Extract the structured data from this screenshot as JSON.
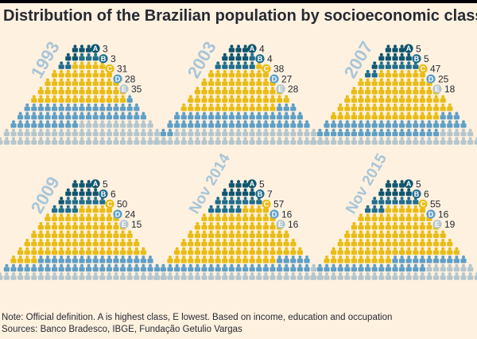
{
  "title": "Distribution of the Brazilian population by socioeconomic class",
  "note": "Note: Official definition. A is highest class, E lowest. Based on income, education and occupation",
  "sources": "Sources: Banco Bradesco, IBGE, Fundação Getulio Vargas",
  "colors": {
    "background": "#fff1e0",
    "A": "#0f5670",
    "B": "#1f6e8c",
    "C": "#e9bc14",
    "D": "#5d9fc7",
    "E": "#b4c6cc",
    "year_label": "#a8c6d8"
  },
  "chart_data": [
    {
      "type": "pictogram",
      "period": "1993",
      "classes": [
        "A",
        "B",
        "C",
        "D",
        "E"
      ],
      "values": [
        3,
        3,
        31,
        28,
        35
      ]
    },
    {
      "type": "pictogram",
      "period": "2003",
      "classes": [
        "A",
        "B",
        "C",
        "D",
        "E"
      ],
      "values": [
        4,
        4,
        38,
        27,
        28
      ]
    },
    {
      "type": "pictogram",
      "period": "2007",
      "classes": [
        "A",
        "B",
        "C",
        "D",
        "E"
      ],
      "values": [
        5,
        5,
        47,
        25,
        18
      ]
    },
    {
      "type": "pictogram",
      "period": "2009",
      "classes": [
        "A",
        "B",
        "C",
        "D",
        "E"
      ],
      "values": [
        5,
        6,
        50,
        24,
        15
      ]
    },
    {
      "type": "pictogram",
      "period": "Nov 2014",
      "classes": [
        "A",
        "B",
        "C",
        "D",
        "E"
      ],
      "values": [
        5,
        7,
        57,
        16,
        16
      ]
    },
    {
      "type": "pictogram",
      "period": "Nov 2015",
      "classes": [
        "A",
        "B",
        "C",
        "D",
        "E"
      ],
      "values": [
        5,
        6,
        55,
        16,
        19
      ]
    }
  ]
}
